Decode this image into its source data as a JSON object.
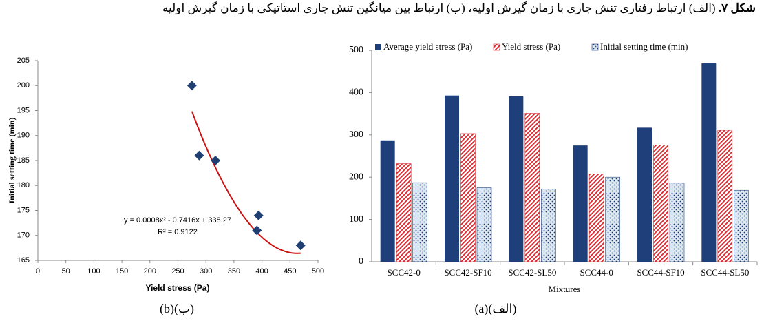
{
  "caption": {
    "label": "شکل ۷.",
    "text": "(الف) ارتباط رفتاری تنش جاری با زمان گیرش اولیه، (ب) ارتباط بین میانگین تنش جاری استاتیکی با زمان گیرش اولیه"
  },
  "chart_data": [
    {
      "type": "scatter",
      "panel_label": "(b)(ب)",
      "x_label": "Yield stress (Pa)",
      "y_label": "Initial setting time (min)",
      "x": [
        275,
        288,
        317,
        391,
        394,
        469
      ],
      "values": [
        200,
        186,
        185,
        171,
        174,
        168
      ],
      "color": "#1f3f73",
      "xlim": [
        0,
        500
      ],
      "xticks": [
        0,
        50,
        100,
        150,
        200,
        250,
        300,
        350,
        400,
        450,
        500
      ],
      "ylim": [
        165,
        205
      ],
      "yticks": [
        165,
        170,
        175,
        180,
        185,
        190,
        195,
        200,
        205
      ],
      "trendline": {
        "color": "#cc1111",
        "coefficients": [
          0.0008,
          -0.7416,
          338.27
        ],
        "equation": "y = 0.0008x² - 0.7416x + 338.27",
        "r2": "R² = 0.9122"
      }
    },
    {
      "type": "bar",
      "panel_label": "(a)(الف)",
      "x_label": "Mixtures",
      "categories": [
        "SCC42-0",
        "SCC42-SF10",
        "SCC42-SL50",
        "SCC44-0",
        "SCC44-SF10",
        "SCC44-SL50"
      ],
      "series": [
        {
          "name": "Average yield stress (Pa)",
          "color": "#1f3f7a",
          "fill": "solid",
          "values": [
            287,
            393,
            391,
            275,
            317,
            469
          ]
        },
        {
          "name": "Yield stress (Pa)",
          "color": "#d9252b",
          "fill": "hatch",
          "values": [
            232,
            303,
            351,
            208,
            276,
            311
          ]
        },
        {
          "name": "Initial setting time (min)",
          "color": "#1f3f7a",
          "fill": "dots",
          "values": [
            187,
            175,
            172,
            200,
            186,
            169
          ]
        }
      ],
      "ylim": [
        0,
        500
      ],
      "yticks": [
        0,
        100,
        200,
        300,
        400,
        500
      ],
      "legend": "top"
    }
  ]
}
